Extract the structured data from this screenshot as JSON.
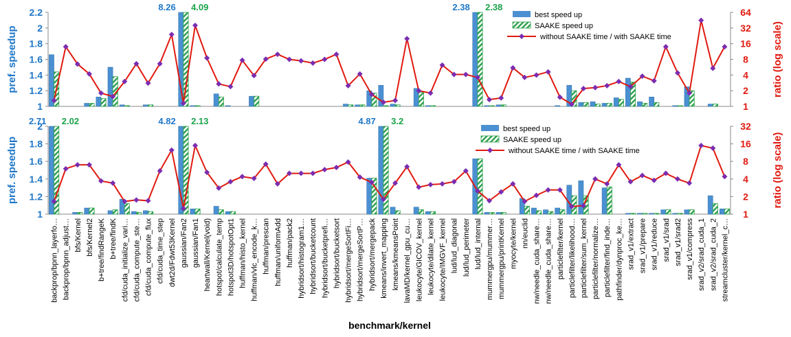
{
  "chart_data": {
    "type": "bar",
    "xlabel": "benchmark/kernel",
    "categories": [
      "backprop/bpnn_layerfo…",
      "backprop/bpnn_adjust…",
      "bfs/Kernel",
      "bfs/Kernel2",
      "b+tree/findRangeK",
      "b+tree/findK",
      "cfd/cuda_initialize_vari…",
      "cfd/cuda_compute_ste…",
      "cfd/cuda_compute_flux",
      "cfd/cuda_time_step",
      "dwt2d/Fdwt53Kernel",
      "gaussian/Fan2",
      "gaussian/Fan1",
      "heartwall/Kernel(void)",
      "hotspot/calculate_temp",
      "hotspot3D/hotspotOpt1",
      "huffman/histo_kernel",
      "huffman/vlc_encode_k…",
      "huffman/prescan",
      "huffman/uniformAdd",
      "huffman/pack2",
      "hybridsort/histogram1…",
      "hybridsort/bucketcount",
      "hybridsort/bucketprefi…",
      "hybridsort/bucketsort",
      "hybridsort/mergeSortFi…",
      "hybridsort/mergeSortP…",
      "hybridsort/mergepack",
      "kmeans/invert_mapping",
      "kmeans/kmeansPoint",
      "lavaMD/kernel_gpu_cu…",
      "leukocyte/GICOV_kernel",
      "leukocyte/dilate_kernel",
      "leukocyte/IMGVF_kernel",
      "lud/lud_diagonal",
      "lud/lud_perimeter",
      "lud/lud_internal",
      "mummergpu/mummer…",
      "mummergpu/printKernel",
      "myocyte/kernel",
      "nn/euclid",
      "nw/needle_cuda_share…",
      "nw/needle_cuda_share…",
      "particlefilter/kernel",
      "particlefilter/likelihood…",
      "particlefilter/sum_kernel",
      "particlefilter/normalize…",
      "particlefilter/find_inde…",
      "pathfinder/dynproc_ke…",
      "srad_v1/extract",
      "srad_v1/prepare",
      "srad_v1/reduce",
      "srad_v1/srad",
      "srad_v1/srad2",
      "srad_v1/compress",
      "srad_v2/srad_cuda_1",
      "srad_v2/srad_cuda_2",
      "streamcluster/kernel_c…"
    ],
    "panels": [
      {
        "ylabel": "pref. speedup",
        "y2label": "ratio (log scale)",
        "ylim": [
          1,
          2.2
        ],
        "yticks": [
          "1",
          "1.2",
          "1.4",
          "1.6",
          "1.8",
          "2",
          "2.2"
        ],
        "y2lim": [
          1,
          64
        ],
        "y2ticks": [
          "1",
          "2",
          "4",
          "8",
          "16",
          "32",
          "64"
        ],
        "legend": {
          "best": "best speed up",
          "saake": "SAAKE speed up",
          "ratio": "without SAAKE time / with SAAKE time"
        },
        "annotations": [
          {
            "cat": 11,
            "series": "best",
            "text": "8.26"
          },
          {
            "cat": 11,
            "series": "saake",
            "text": "4.09"
          },
          {
            "cat": 36,
            "series": "best",
            "text": "2.38"
          },
          {
            "cat": 36,
            "series": "saake",
            "text": "2.38"
          }
        ],
        "series": [
          {
            "name": "best speed up",
            "values": [
              1.66,
              1,
              1,
              1.04,
              1.12,
              1.5,
              1.02,
              1,
              1.02,
              1,
              1,
              8.26,
              1.01,
              1,
              1.16,
              1.01,
              1,
              1.13,
              1,
              1,
              1,
              1,
              1,
              1,
              1,
              1.03,
              1.02,
              1.2,
              1.27,
              1.03,
              1,
              1.23,
              1.01,
              1,
              1,
              1,
              2.38,
              1.01,
              1.02,
              1,
              1,
              1,
              1,
              1.01,
              1.27,
              1.05,
              1.06,
              1.04,
              1.11,
              1.36,
              1.06,
              1.12,
              1,
              1.01,
              1.25,
              1,
              1.03,
              1
            ]
          },
          {
            "name": "SAAKE speed up",
            "values": [
              1.44,
              1,
              1,
              1.04,
              1.1,
              1.38,
              1.01,
              1,
              1.02,
              1,
              1,
              4.09,
              1.01,
              1,
              1.12,
              1,
              1,
              1.13,
              1,
              1,
              1,
              1,
              1,
              1,
              1,
              1.02,
              1.02,
              1.17,
              1.01,
              1.02,
              1,
              1.18,
              1.01,
              1,
              1,
              1,
              2.38,
              1.01,
              1.02,
              1,
              1,
              1,
              1,
              1,
              1.2,
              1.05,
              1.03,
              1.04,
              1.09,
              1.31,
              1.04,
              1.05,
              1,
              1.01,
              1.2,
              1,
              1.03,
              1
            ]
          },
          {
            "name": "without SAAKE time / with SAAKE time",
            "values": [
              1.3,
              14,
              6.5,
              4.2,
              1.8,
              1.55,
              3,
              6.6,
              2.8,
              6.6,
              24,
              1.15,
              36,
              8.5,
              2.7,
              2.4,
              7.7,
              3.9,
              8.1,
              10,
              8,
              7.5,
              6.8,
              8,
              10,
              2.5,
              4.2,
              1.7,
              1.2,
              1.3,
              20,
              2,
              1.8,
              6.2,
              4.1,
              4.1,
              3.6,
              1.35,
              1.45,
              5.5,
              3.6,
              4,
              4.6,
              1.5,
              1.1,
              2.2,
              2.3,
              2.5,
              3,
              2.4,
              3.8,
              3.1,
              14,
              4.4,
              1.8,
              45,
              5.4,
              14
            ]
          }
        ]
      },
      {
        "ylabel": "pref. speedup",
        "y2label": "ratio (log scale)",
        "ylim": [
          1,
          2
        ],
        "yticks": [
          "1",
          "1.2",
          "1.4",
          "1.6",
          "1.8",
          "2"
        ],
        "y2lim": [
          1,
          32
        ],
        "y2ticks": [
          "1",
          "2",
          "4",
          "8",
          "16",
          "32"
        ],
        "legend": {
          "best": "best speed up",
          "saake": "SAAKE speed up",
          "ratio": "without SAAKE time / with SAAKE time"
        },
        "annotations": [
          {
            "cat": 0,
            "series": "best",
            "text": "2.71"
          },
          {
            "cat": 0,
            "series": "saake",
            "text": "2.02"
          },
          {
            "cat": 11,
            "series": "best",
            "text": "4.82"
          },
          {
            "cat": 11,
            "series": "saake",
            "text": "2.13"
          },
          {
            "cat": 28,
            "series": "best",
            "text": "4.87"
          },
          {
            "cat": 28,
            "series": "saake",
            "text": "3.2"
          }
        ],
        "series": [
          {
            "name": "best speed up",
            "values": [
              2.71,
              1,
              1.02,
              1.07,
              1,
              1.04,
              1.17,
              1.03,
              1.04,
              1,
              1,
              4.82,
              1.06,
              1,
              1.09,
              1.03,
              1,
              1,
              1,
              1,
              1,
              1,
              1,
              1,
              1,
              1,
              1,
              1.41,
              4.87,
              1.08,
              1,
              1.08,
              1.03,
              1,
              1,
              1,
              1.63,
              1.02,
              1.02,
              1,
              1.18,
              1.07,
              1.05,
              1.07,
              1.33,
              1.38,
              1,
              1.3,
              1,
              1.01,
              1.01,
              1.01,
              1.05,
              1.01,
              1.05,
              1,
              1.21,
              1.06
            ]
          },
          {
            "name": "SAAKE speed up",
            "values": [
              2.02,
              1,
              1.02,
              1.07,
              1,
              1.05,
              1.12,
              1.02,
              1.03,
              1,
              1,
              2.13,
              1.06,
              1,
              1.05,
              1.03,
              1,
              1,
              1,
              1,
              1,
              1,
              1,
              1,
              1,
              1,
              1,
              1.41,
              3.2,
              1.04,
              1,
              1.05,
              1.03,
              1,
              1,
              1,
              1.63,
              1.02,
              1.02,
              1,
              1.09,
              1.04,
              1.03,
              1.05,
              1.21,
              1.21,
              1,
              1.31,
              1,
              1.01,
              1.01,
              1.01,
              1.05,
              1.01,
              1.05,
              1,
              1.12,
              1.06
            ]
          },
          {
            "name": "without SAAKE time / with SAAKE time",
            "values": [
              1.65,
              6,
              7,
              7,
              3.7,
              3.4,
              1.65,
              1.75,
              1.7,
              5.5,
              12.5,
              1.25,
              15,
              5.2,
              2.8,
              3.6,
              4.4,
              4.1,
              7.2,
              3.3,
              5,
              5,
              5,
              5.8,
              6.3,
              7.8,
              4.3,
              3.5,
              1.8,
              3.4,
              6.5,
              2.9,
              3.2,
              3.3,
              3.6,
              5.5,
              2.5,
              1.7,
              2.4,
              3.3,
              1.65,
              2.1,
              2.6,
              2.6,
              1.35,
              1.4,
              4,
              3.3,
              7,
              3.6,
              4.6,
              3.8,
              5,
              4,
              3.4,
              15,
              13.5,
              4.4
            ]
          }
        ]
      }
    ]
  },
  "colors": {
    "best": "#4a90d2",
    "saake": "#2ca04c",
    "ratio_line": "#e0190f",
    "ratio_marker": "#7b2cb0"
  }
}
